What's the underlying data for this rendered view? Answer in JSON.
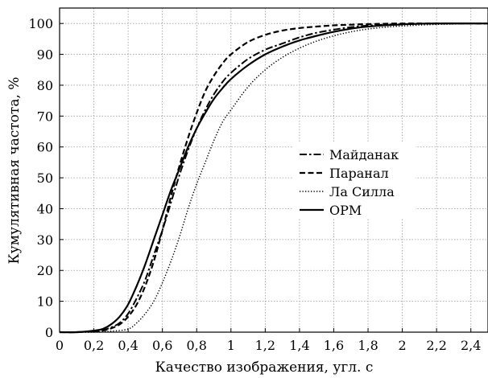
{
  "chart_data": {
    "type": "line",
    "xlabel": "Качество изображения, угл. с",
    "ylabel": "Кумулятивная частота, %",
    "xlim": [
      0,
      2.5
    ],
    "ylim": [
      0,
      105
    ],
    "grid": true,
    "legend_position": "center-right",
    "x_ticks": [
      {
        "value": 0,
        "label": "0"
      },
      {
        "value": 0.2,
        "label": "0,2"
      },
      {
        "value": 0.4,
        "label": "0,4"
      },
      {
        "value": 0.6,
        "label": "0,6"
      },
      {
        "value": 0.8,
        "label": "0,8"
      },
      {
        "value": 1.0,
        "label": "1"
      },
      {
        "value": 1.2,
        "label": "1,2"
      },
      {
        "value": 1.4,
        "label": "1,4"
      },
      {
        "value": 1.6,
        "label": "1,6"
      },
      {
        "value": 1.8,
        "label": "1,8"
      },
      {
        "value": 2.0,
        "label": "2"
      },
      {
        "value": 2.2,
        "label": "2,2"
      },
      {
        "value": 2.4,
        "label": "2,4"
      }
    ],
    "y_ticks": [
      {
        "value": 0,
        "label": "0"
      },
      {
        "value": 10,
        "label": "10"
      },
      {
        "value": 20,
        "label": "20"
      },
      {
        "value": 30,
        "label": "30"
      },
      {
        "value": 40,
        "label": "40"
      },
      {
        "value": 50,
        "label": "50"
      },
      {
        "value": 60,
        "label": "60"
      },
      {
        "value": 70,
        "label": "70"
      },
      {
        "value": 80,
        "label": "80"
      },
      {
        "value": 90,
        "label": "90"
      },
      {
        "value": 100,
        "label": "100"
      }
    ],
    "series": [
      {
        "name": "Майданак",
        "style": "dash-dot",
        "x": [
          0,
          0.1,
          0.2,
          0.25,
          0.3,
          0.35,
          0.4,
          0.45,
          0.5,
          0.55,
          0.6,
          0.65,
          0.7,
          0.75,
          0.8,
          0.85,
          0.9,
          0.95,
          1.0,
          1.1,
          1.2,
          1.3,
          1.4,
          1.5,
          1.6,
          1.7,
          1.8,
          2.0,
          2.2,
          2.5
        ],
        "values": [
          0,
          0,
          0.3,
          0.6,
          1.5,
          3,
          6,
          11,
          17,
          25,
          33,
          42,
          51,
          59,
          66,
          72,
          77,
          81,
          84,
          88.5,
          91.5,
          93.5,
          95.5,
          97,
          98,
          98.8,
          99.3,
          99.8,
          100,
          100
        ]
      },
      {
        "name": "Паранал",
        "style": "dashed",
        "x": [
          0,
          0.1,
          0.2,
          0.25,
          0.3,
          0.35,
          0.4,
          0.45,
          0.5,
          0.55,
          0.6,
          0.65,
          0.7,
          0.75,
          0.8,
          0.85,
          0.9,
          0.95,
          1.0,
          1.1,
          1.2,
          1.3,
          1.4,
          1.5,
          1.6,
          1.7,
          1.8,
          2.0,
          2.2,
          2.5
        ],
        "values": [
          0,
          0,
          0.3,
          0.5,
          1.2,
          2.5,
          5,
          9,
          15,
          23,
          33,
          44,
          54,
          63,
          71,
          78,
          83,
          87,
          90,
          94,
          96.3,
          97.7,
          98.5,
          99,
          99.4,
          99.6,
          99.8,
          100,
          100,
          100
        ]
      },
      {
        "name": "Ла Силла",
        "style": "dotted",
        "x": [
          0,
          0.2,
          0.3,
          0.4,
          0.45,
          0.5,
          0.55,
          0.6,
          0.65,
          0.7,
          0.75,
          0.8,
          0.85,
          0.9,
          0.95,
          1.0,
          1.1,
          1.2,
          1.3,
          1.4,
          1.5,
          1.6,
          1.7,
          1.8,
          1.9,
          2.0,
          2.2,
          2.5
        ],
        "values": [
          0,
          0,
          0.3,
          1,
          3,
          6,
          10,
          16,
          23,
          31,
          40,
          48,
          55,
          62,
          68,
          72,
          79.5,
          85,
          89,
          92,
          94.3,
          96,
          97.3,
          98.2,
          98.8,
          99.2,
          99.7,
          100
        ]
      },
      {
        "name": "ОРМ",
        "style": "solid",
        "x": [
          0,
          0.1,
          0.2,
          0.25,
          0.3,
          0.35,
          0.4,
          0.45,
          0.5,
          0.55,
          0.6,
          0.65,
          0.7,
          0.75,
          0.8,
          0.85,
          0.9,
          0.95,
          1.0,
          1.1,
          1.2,
          1.3,
          1.4,
          1.5,
          1.6,
          1.7,
          1.8,
          2.0,
          2.2,
          2.5
        ],
        "values": [
          0,
          0,
          0.5,
          1,
          2.5,
          5,
          9,
          15,
          22,
          30,
          38,
          46,
          53,
          60,
          66,
          71,
          75.5,
          79,
          82,
          86.5,
          90,
          92.5,
          94.5,
          96,
          97.3,
          98.3,
          99,
          99.7,
          100,
          100
        ]
      }
    ]
  }
}
